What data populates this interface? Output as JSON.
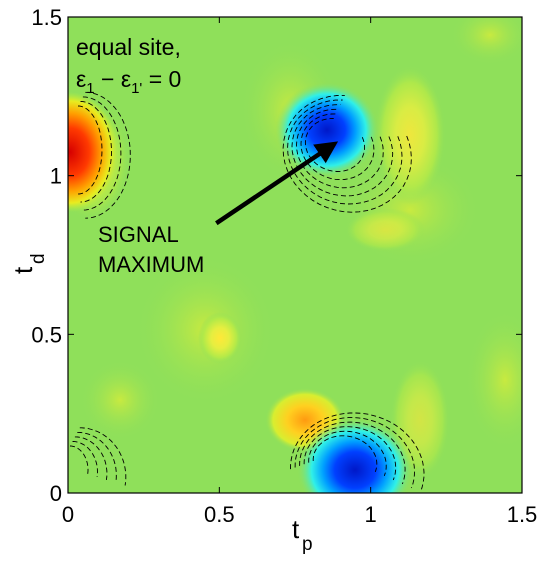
{
  "chart_data": {
    "type": "heatmap",
    "xlabel": "t",
    "xlabel_sub": "p",
    "ylabel": "t",
    "ylabel_sub": "d",
    "xlim": [
      0,
      1.5
    ],
    "ylim": [
      0,
      1.5
    ],
    "x_ticks": [
      0,
      0.5,
      1,
      1.5
    ],
    "x_tick_labels": [
      "0",
      "0.5",
      "1",
      "1.5"
    ],
    "y_ticks": [
      0,
      0.5,
      1,
      1.5
    ],
    "y_tick_labels": [
      "0",
      "0.5",
      "1",
      "1.5"
    ],
    "grid": false,
    "colormap": "jet",
    "background_color": "#8fe05a",
    "note_line1": "equal site,",
    "note_line2": {
      "epsilon": "ε",
      "sub1": "1",
      "minus": " − ",
      "sub2": "1'",
      "tail": " = 0"
    },
    "annotation": {
      "line1": "SIGNAL",
      "line2": "MAXIMUM",
      "arrow_from": [
        0.49,
        0.85
      ],
      "arrow_to": [
        0.88,
        1.1
      ]
    },
    "features": [
      {
        "kind": "positive peak",
        "t_p": 0.0,
        "t_d": 1.07,
        "level": "max"
      },
      {
        "kind": "negative peak",
        "t_p": 0.85,
        "t_d": 1.2,
        "level": "min"
      },
      {
        "kind": "negative peak",
        "t_p": 0.95,
        "t_d": 0.07,
        "level": "min"
      },
      {
        "kind": "positive lobe",
        "t_p": 0.77,
        "t_d": 0.22,
        "level": "moderate"
      },
      {
        "kind": "positive lobe",
        "t_p": 0.5,
        "t_d": 0.5,
        "level": "weak"
      }
    ]
  }
}
